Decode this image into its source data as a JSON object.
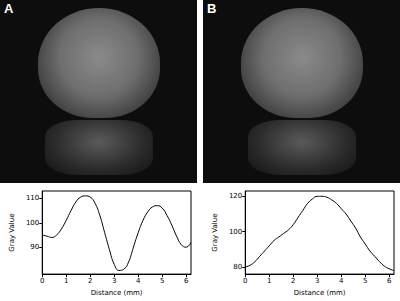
{
  "chart_data": [
    {
      "type": "line",
      "title": "A",
      "xlabel": "Distance (mm)",
      "ylabel": "Gray Value",
      "color": "#000000",
      "grid": false,
      "x": [
        0,
        0.2,
        0.4,
        0.6,
        0.8,
        1.0,
        1.2,
        1.4,
        1.6,
        1.8,
        2.0,
        2.2,
        2.4,
        2.6,
        2.8,
        3.0,
        3.2,
        3.4,
        3.6,
        3.8,
        4.0,
        4.2,
        4.4,
        4.6,
        4.8,
        5.0,
        5.2,
        5.4,
        5.6,
        5.8,
        6.0,
        6.2
      ],
      "values": [
        95,
        94.5,
        94,
        95,
        97.5,
        101,
        105,
        108.5,
        110.5,
        111,
        110.5,
        108,
        103,
        96,
        89,
        83,
        80.5,
        81,
        84,
        90,
        96,
        101,
        104.5,
        106.5,
        107,
        106,
        103,
        99,
        94.5,
        91,
        90,
        92
      ],
      "xlim": [
        0,
        6.2
      ],
      "xticks": [
        0,
        1,
        2,
        3,
        4,
        5,
        6
      ],
      "ylim": [
        79,
        113
      ],
      "yticks": [
        90,
        100,
        110
      ]
    },
    {
      "type": "line",
      "title": "B",
      "xlabel": "Distance (mm)",
      "ylabel": "Gray Value",
      "color": "#000000",
      "grid": false,
      "x": [
        0,
        0.2,
        0.4,
        0.6,
        0.8,
        1.0,
        1.2,
        1.4,
        1.6,
        1.8,
        2.0,
        2.2,
        2.4,
        2.6,
        2.8,
        3.0,
        3.2,
        3.4,
        3.6,
        3.8,
        4.0,
        4.2,
        4.4,
        4.6,
        4.8,
        5.0,
        5.2,
        5.4,
        5.6,
        5.8,
        6.0,
        6.2
      ],
      "values": [
        80,
        81,
        83,
        86,
        89,
        92,
        95,
        97,
        99,
        101,
        104,
        108,
        112,
        116,
        118.5,
        120,
        120,
        119.5,
        118,
        116,
        113,
        110,
        106,
        102,
        97,
        93,
        89,
        86,
        83,
        80.5,
        79,
        78
      ],
      "xlim": [
        0,
        6.2
      ],
      "xticks": [
        0,
        1,
        2,
        3,
        4,
        5,
        6
      ],
      "ylim": [
        76,
        123
      ],
      "yticks": [
        80,
        100,
        120
      ]
    }
  ]
}
